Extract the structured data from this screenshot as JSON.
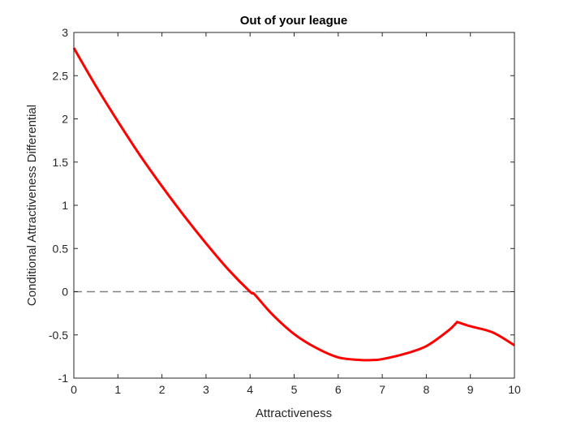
{
  "chart_data": {
    "type": "line",
    "title": "Out of your league",
    "xlabel": "Attractiveness",
    "ylabel": "Conditional Attractiveness Differential",
    "xlim": [
      0,
      10
    ],
    "ylim": [
      -1,
      3
    ],
    "xticks": [
      0,
      1,
      2,
      3,
      4,
      5,
      6,
      7,
      8,
      9,
      10
    ],
    "yticks": [
      -1,
      -0.5,
      0,
      0.5,
      1,
      1.5,
      2,
      2.5,
      3
    ],
    "xtick_labels": [
      "0",
      "1",
      "2",
      "3",
      "4",
      "5",
      "6",
      "7",
      "8",
      "9",
      "10"
    ],
    "ytick_labels": [
      "-1",
      "-0.5",
      "0",
      "0.5",
      "1",
      "1.5",
      "2",
      "2.5",
      "3"
    ],
    "grid": false,
    "series": [
      {
        "color": "#ff0000",
        "style": "solid",
        "x": [
          0,
          0.5,
          1,
          1.5,
          2,
          2.5,
          3,
          3.5,
          4,
          4.1,
          4.5,
          5,
          5.5,
          6,
          6.5,
          6.8,
          7,
          7.5,
          8,
          8.5,
          8.7,
          9,
          9.5,
          10
        ],
        "y": [
          2.82,
          2.38,
          1.97,
          1.58,
          1.22,
          0.88,
          0.56,
          0.26,
          0.0,
          -0.03,
          -0.26,
          -0.49,
          -0.65,
          -0.76,
          -0.79,
          -0.79,
          -0.78,
          -0.72,
          -0.63,
          -0.45,
          -0.35,
          -0.4,
          -0.47,
          -0.62
        ]
      },
      {
        "color": "#808080",
        "style": "dashed",
        "x": [
          0,
          10
        ],
        "y": [
          0,
          0
        ]
      }
    ]
  }
}
